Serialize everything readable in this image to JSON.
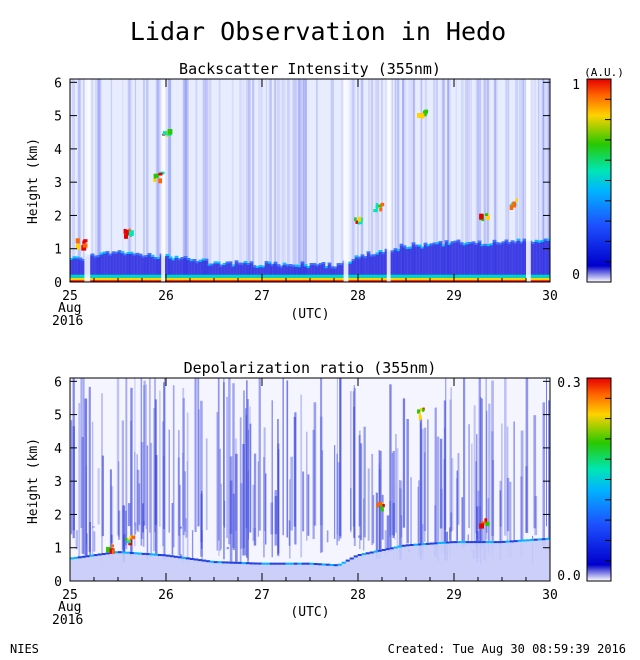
{
  "page": {
    "title": "Lidar Observation in Hedo",
    "footer_left": "NIES",
    "footer_right": "Created: Tue Aug 30 08:59:39 2016"
  },
  "colors": {
    "background": "#ffffff",
    "axis": "#000000",
    "colormap": [
      "#ffffff",
      "#0000cc",
      "#1e50ff",
      "#00b4ff",
      "#00e6b4",
      "#28c800",
      "#ffd200",
      "#ff6400",
      "#e60000"
    ]
  },
  "chart_data": [
    {
      "type": "heatmap",
      "title": "Backscatter Intensity (355nm)",
      "xlabel": "(UTC)",
      "ylabel": "Height (km)",
      "x_ticks": [
        "25",
        "26",
        "27",
        "28",
        "29",
        "30"
      ],
      "x_start_label": [
        "Aug",
        "2016"
      ],
      "xlim": [
        25,
        30
      ],
      "y_ticks": [
        0,
        1,
        2,
        3,
        4,
        5,
        6
      ],
      "ylim": [
        0,
        6.1
      ],
      "colorbar": {
        "unit": "(A.U.)",
        "min_label": "0",
        "max_label": "1",
        "range": [
          0,
          1
        ]
      },
      "description_values": {
        "boundary_layer_top_km": [
          [
            25.0,
            0.7
          ],
          [
            25.5,
            0.9
          ],
          [
            26.0,
            0.8
          ],
          [
            26.5,
            0.6
          ],
          [
            27.0,
            0.55
          ],
          [
            27.5,
            0.55
          ],
          [
            27.8,
            0.5
          ],
          [
            28.0,
            0.8
          ],
          [
            28.5,
            1.1
          ],
          [
            29.0,
            1.2
          ],
          [
            29.5,
            1.2
          ],
          [
            30.0,
            1.3
          ]
        ],
        "cloud_patches": [
          [
            25.1,
            1.2
          ],
          [
            25.6,
            1.5
          ],
          [
            25.9,
            3.2
          ],
          [
            26.0,
            4.5
          ],
          [
            28.0,
            1.9
          ],
          [
            28.2,
            2.3
          ],
          [
            28.65,
            5.1
          ],
          [
            29.3,
            2.0
          ],
          [
            29.6,
            2.4
          ]
        ]
      }
    },
    {
      "type": "heatmap",
      "title": "Depolarization ratio (355nm)",
      "xlabel": "(UTC)",
      "ylabel": "Height (km)",
      "x_ticks": [
        "25",
        "26",
        "27",
        "28",
        "29",
        "30"
      ],
      "x_start_label": [
        "Aug",
        "2016"
      ],
      "xlim": [
        25,
        30
      ],
      "y_ticks": [
        0,
        1,
        2,
        3,
        4,
        5,
        6
      ],
      "ylim": [
        0,
        6.1
      ],
      "colorbar": {
        "unit": "",
        "min_label": "0.0",
        "max_label": "0.3",
        "range": [
          0,
          0.3
        ]
      },
      "description_values": {
        "high_depol_patches": [
          [
            25.4,
            1.0
          ],
          [
            25.6,
            1.3
          ],
          [
            28.2,
            2.3
          ],
          [
            28.65,
            5.1
          ],
          [
            29.3,
            1.8
          ]
        ]
      }
    }
  ]
}
